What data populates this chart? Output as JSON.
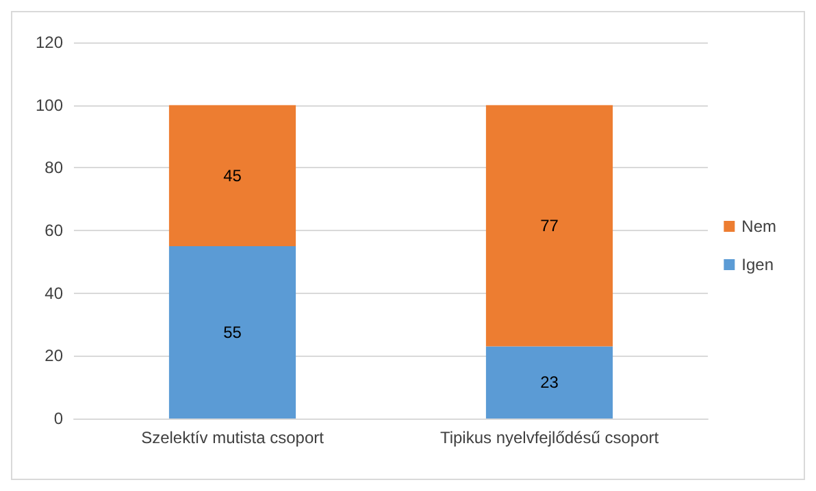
{
  "chart_data": {
    "type": "bar",
    "stacked": true,
    "categories": [
      "Szelektív mutista csoport",
      "Tipikus nyelvfejlődésű csoport"
    ],
    "series": [
      {
        "name": "Igen",
        "color": "#5b9bd5",
        "values": [
          55,
          23
        ]
      },
      {
        "name": "Nem",
        "color": "#ed7d31",
        "values": [
          45,
          77
        ]
      }
    ],
    "ylim": [
      0,
      120
    ],
    "yticks": [
      0,
      20,
      40,
      60,
      80,
      100,
      120
    ],
    "grid": "y",
    "legend": "right",
    "data_labels": true
  }
}
